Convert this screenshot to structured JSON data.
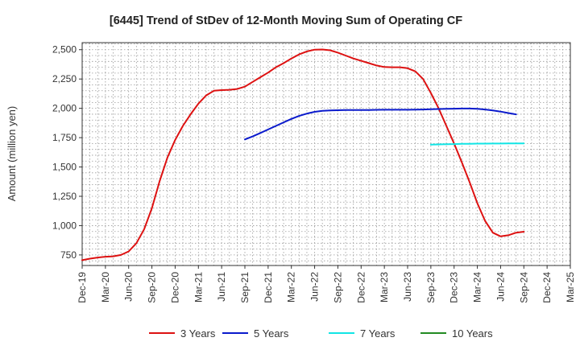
{
  "chart_data": {
    "type": "line",
    "title": "[6445]  Trend of StDev of 12-Month Moving Sum of Operating CF",
    "ylabel": "Amount (million yen)",
    "xlabel": "",
    "ylim": [
      660,
      2560
    ],
    "yticks": [
      750,
      1000,
      1250,
      1500,
      1750,
      2000,
      2250,
      2500
    ],
    "ytick_labels": [
      "750",
      "1,000",
      "1,250",
      "1,500",
      "1,750",
      "2,000",
      "2,250",
      "2,500"
    ],
    "x_range": [
      "2019-12",
      "2025-03"
    ],
    "xtick_labels": [
      "Dec-19",
      "Mar-20",
      "Jun-20",
      "Sep-20",
      "Dec-20",
      "Mar-21",
      "Jun-21",
      "Sep-21",
      "Dec-21",
      "Mar-22",
      "Jun-22",
      "Sep-22",
      "Dec-22",
      "Mar-23",
      "Jun-23",
      "Sep-23",
      "Dec-23",
      "Mar-24",
      "Jun-24",
      "Sep-24",
      "Dec-24",
      "Mar-25"
    ],
    "grid": true,
    "legend_position": "bottom",
    "series": [
      {
        "name": "3 Years",
        "color": "#dd1111",
        "points": [
          [
            "2019-12",
            705
          ],
          [
            "2020-01",
            718
          ],
          [
            "2020-02",
            728
          ],
          [
            "2020-03",
            735
          ],
          [
            "2020-04",
            738
          ],
          [
            "2020-05",
            750
          ],
          [
            "2020-06",
            780
          ],
          [
            "2020-07",
            850
          ],
          [
            "2020-08",
            970
          ],
          [
            "2020-09",
            1150
          ],
          [
            "2020-10",
            1380
          ],
          [
            "2020-11",
            1580
          ],
          [
            "2020-12",
            1730
          ],
          [
            "2021-01",
            1850
          ],
          [
            "2021-02",
            1950
          ],
          [
            "2021-03",
            2040
          ],
          [
            "2021-04",
            2110
          ],
          [
            "2021-05",
            2150
          ],
          [
            "2021-06",
            2155
          ],
          [
            "2021-07",
            2158
          ],
          [
            "2021-08",
            2165
          ],
          [
            "2021-09",
            2185
          ],
          [
            "2021-10",
            2225
          ],
          [
            "2021-11",
            2265
          ],
          [
            "2021-12",
            2305
          ],
          [
            "2022-01",
            2350
          ],
          [
            "2022-02",
            2385
          ],
          [
            "2022-03",
            2425
          ],
          [
            "2022-04",
            2460
          ],
          [
            "2022-05",
            2485
          ],
          [
            "2022-06",
            2500
          ],
          [
            "2022-07",
            2502
          ],
          [
            "2022-08",
            2495
          ],
          [
            "2022-09",
            2475
          ],
          [
            "2022-10",
            2450
          ],
          [
            "2022-11",
            2425
          ],
          [
            "2022-12",
            2405
          ],
          [
            "2023-01",
            2385
          ],
          [
            "2023-02",
            2365
          ],
          [
            "2023-03",
            2352
          ],
          [
            "2023-04",
            2350
          ],
          [
            "2023-05",
            2350
          ],
          [
            "2023-06",
            2342
          ],
          [
            "2023-07",
            2315
          ],
          [
            "2023-08",
            2250
          ],
          [
            "2023-09",
            2130
          ],
          [
            "2023-10",
            2000
          ],
          [
            "2023-11",
            1850
          ],
          [
            "2023-12",
            1700
          ],
          [
            "2024-01",
            1540
          ],
          [
            "2024-02",
            1370
          ],
          [
            "2024-03",
            1190
          ],
          [
            "2024-04",
            1040
          ],
          [
            "2024-05",
            940
          ],
          [
            "2024-06",
            908
          ],
          [
            "2024-07",
            918
          ],
          [
            "2024-08",
            940
          ],
          [
            "2024-09",
            948
          ]
        ]
      },
      {
        "name": "5 Years",
        "color": "#0a1acc",
        "points": [
          [
            "2021-09",
            1735
          ],
          [
            "2021-10",
            1760
          ],
          [
            "2021-11",
            1790
          ],
          [
            "2021-12",
            1820
          ],
          [
            "2022-01",
            1850
          ],
          [
            "2022-02",
            1880
          ],
          [
            "2022-03",
            1910
          ],
          [
            "2022-04",
            1935
          ],
          [
            "2022-05",
            1955
          ],
          [
            "2022-06",
            1970
          ],
          [
            "2022-07",
            1978
          ],
          [
            "2022-08",
            1982
          ],
          [
            "2022-09",
            1984
          ],
          [
            "2022-10",
            1985
          ],
          [
            "2022-11",
            1985
          ],
          [
            "2022-12",
            1985
          ],
          [
            "2023-01",
            1986
          ],
          [
            "2023-02",
            1987
          ],
          [
            "2023-03",
            1988
          ],
          [
            "2023-04",
            1988
          ],
          [
            "2023-05",
            1988
          ],
          [
            "2023-06",
            1988
          ],
          [
            "2023-07",
            1989
          ],
          [
            "2023-08",
            1990
          ],
          [
            "2023-09",
            1992
          ],
          [
            "2023-10",
            1994
          ],
          [
            "2023-11",
            1996
          ],
          [
            "2023-12",
            1997
          ],
          [
            "2024-01",
            1998
          ],
          [
            "2024-02",
            1998
          ],
          [
            "2024-03",
            1996
          ],
          [
            "2024-04",
            1990
          ],
          [
            "2024-05",
            1982
          ],
          [
            "2024-06",
            1972
          ],
          [
            "2024-07",
            1960
          ],
          [
            "2024-08",
            1948
          ]
        ]
      },
      {
        "name": "7 Years",
        "color": "#11e5e5",
        "points": [
          [
            "2023-09",
            1690
          ],
          [
            "2023-10",
            1692
          ],
          [
            "2023-11",
            1694
          ],
          [
            "2023-12",
            1695
          ],
          [
            "2024-01",
            1697
          ],
          [
            "2024-02",
            1698
          ],
          [
            "2024-03",
            1699
          ],
          [
            "2024-04",
            1699
          ],
          [
            "2024-05",
            1700
          ],
          [
            "2024-06",
            1700
          ],
          [
            "2024-07",
            1701
          ],
          [
            "2024-08",
            1701
          ],
          [
            "2024-09",
            1701
          ]
        ]
      },
      {
        "name": "10 Years",
        "color": "#228b22",
        "points": []
      }
    ]
  }
}
